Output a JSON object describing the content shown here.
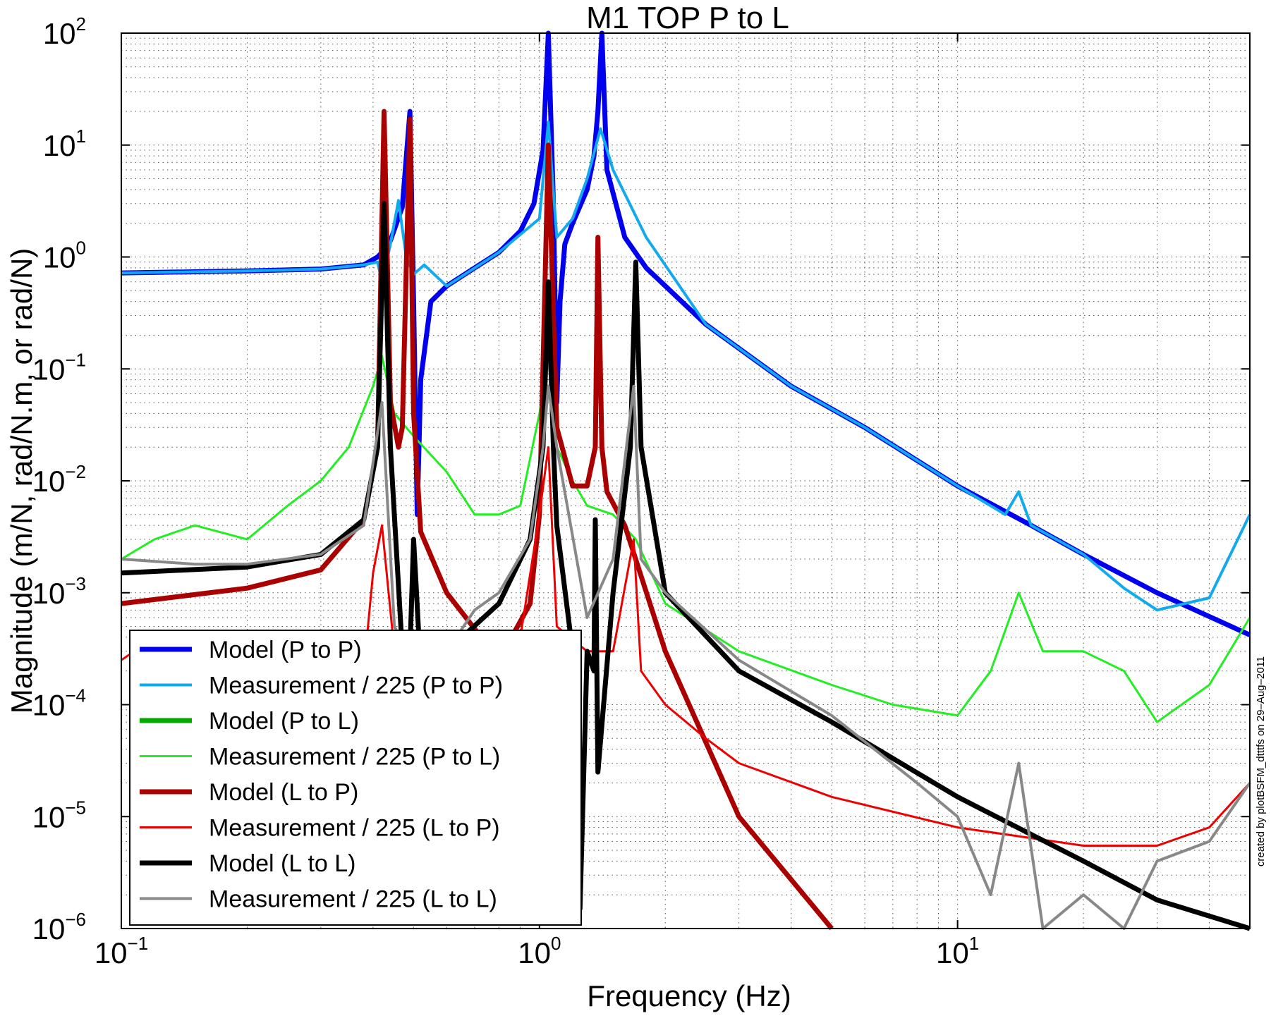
{
  "chart_data": {
    "type": "line",
    "title": "M1 TOP P to L",
    "xlabel": "Frequency (Hz)",
    "ylabel": "Magnitude (m/N, rad/N.m, or rad/N)",
    "xscale": "log",
    "yscale": "log",
    "xlim": [
      0.1,
      50
    ],
    "ylim": [
      1e-06,
      100
    ],
    "grid": true,
    "legend_position": "bottom-left",
    "credit": "created by plotBSFM_dtttfs on 29–Aug–2011",
    "x_ticks": [
      {
        "base": "10",
        "exp": "−1",
        "value": 0.1
      },
      {
        "base": "10",
        "exp": "0",
        "value": 1
      },
      {
        "base": "10",
        "exp": "1",
        "value": 10
      }
    ],
    "y_ticks": [
      {
        "base": "10",
        "exp": "2",
        "value": 100
      },
      {
        "base": "10",
        "exp": "1",
        "value": 10
      },
      {
        "base": "10",
        "exp": "0",
        "value": 1
      },
      {
        "base": "10",
        "exp": "−1",
        "value": 0.1
      },
      {
        "base": "10",
        "exp": "−2",
        "value": 0.01
      },
      {
        "base": "10",
        "exp": "−3",
        "value": 0.001
      },
      {
        "base": "10",
        "exp": "−4",
        "value": 0.0001
      },
      {
        "base": "10",
        "exp": "−5",
        "value": 1e-05
      },
      {
        "base": "10",
        "exp": "−6",
        "value": 1e-06
      }
    ],
    "series": [
      {
        "name": "Model (P to P)",
        "color": "#0000ee",
        "width": 7,
        "x": [
          0.1,
          0.2,
          0.3,
          0.38,
          0.41,
          0.425,
          0.44,
          0.47,
          0.49,
          0.5,
          0.51,
          0.52,
          0.55,
          0.6,
          0.7,
          0.8,
          0.9,
          0.97,
          1.02,
          1.05,
          1.08,
          1.1,
          1.12,
          1.15,
          1.2,
          1.3,
          1.35,
          1.38,
          1.41,
          1.45,
          1.6,
          1.8,
          2.5,
          4,
          6,
          10,
          15,
          20,
          30,
          50
        ],
        "y": [
          0.72,
          0.75,
          0.78,
          0.85,
          1.0,
          1.15,
          1.4,
          2.8,
          20,
          0.4,
          0.005,
          0.08,
          0.4,
          0.55,
          0.8,
          1.1,
          1.7,
          3,
          9,
          150,
          3,
          0.05,
          0.4,
          1.3,
          2,
          4,
          8,
          20,
          150,
          6,
          1.5,
          0.8,
          0.25,
          0.07,
          0.03,
          0.009,
          0.004,
          0.0022,
          0.001,
          0.00042
        ]
      },
      {
        "name": "Measurement / 225 (P to P)",
        "color": "#11aaee",
        "width": 4,
        "x": [
          0.1,
          0.2,
          0.3,
          0.38,
          0.41,
          0.42,
          0.44,
          0.46,
          0.48,
          0.5,
          0.53,
          0.6,
          0.8,
          1.0,
          1.05,
          1.1,
          1.2,
          1.3,
          1.4,
          1.5,
          1.8,
          2.5,
          4,
          6,
          10,
          13,
          14,
          15,
          20,
          25,
          30,
          40,
          50
        ],
        "y": [
          0.72,
          0.75,
          0.78,
          0.85,
          0.9,
          0.6,
          1.3,
          3.2,
          1.0,
          0.7,
          0.85,
          0.55,
          1.1,
          2.2,
          16,
          1.5,
          2.2,
          5,
          14,
          6,
          1.5,
          0.25,
          0.07,
          0.03,
          0.009,
          0.005,
          0.008,
          0.004,
          0.0022,
          0.0011,
          0.0007,
          0.0009,
          0.005
        ]
      },
      {
        "name": "Model (P to L)",
        "color": "#00aa00",
        "width": 7,
        "x": [],
        "y": []
      },
      {
        "name": "Measurement / 225 (P to L)",
        "color": "#22ee22",
        "width": 3,
        "x": [
          0.1,
          0.12,
          0.15,
          0.2,
          0.25,
          0.3,
          0.35,
          0.4,
          0.42,
          0.45,
          0.5,
          0.6,
          0.7,
          0.8,
          0.9,
          1.0,
          1.05,
          1.1,
          1.2,
          1.3,
          1.5,
          1.7,
          2,
          3,
          5,
          7,
          10,
          12,
          14,
          16,
          20,
          25,
          30,
          40,
          50
        ],
        "y": [
          0.002,
          0.003,
          0.004,
          0.003,
          0.006,
          0.01,
          0.02,
          0.07,
          0.13,
          0.04,
          0.025,
          0.012,
          0.005,
          0.005,
          0.006,
          0.04,
          0.12,
          0.02,
          0.01,
          0.006,
          0.005,
          0.003,
          0.0008,
          0.0003,
          0.00015,
          0.0001,
          8e-05,
          0.0002,
          0.001,
          0.0003,
          0.0003,
          0.0002,
          7e-05,
          0.00015,
          0.0006
        ]
      },
      {
        "name": "Model (L to P)",
        "color": "#aa0000",
        "width": 7,
        "x": [
          0.1,
          0.2,
          0.3,
          0.38,
          0.41,
          0.425,
          0.44,
          0.46,
          0.47,
          0.49,
          0.5,
          0.52,
          0.6,
          0.8,
          0.95,
          1.0,
          1.05,
          1.1,
          1.2,
          1.3,
          1.36,
          1.38,
          1.41,
          1.45,
          1.6,
          2,
          3,
          5
        ],
        "y": [
          0.0008,
          0.0011,
          0.0016,
          0.0045,
          0.02,
          20,
          0.05,
          0.02,
          0.03,
          17,
          0.04,
          0.0035,
          0.001,
          0.00025,
          0.0008,
          0.005,
          10,
          0.03,
          0.009,
          0.009,
          0.02,
          1.5,
          0.02,
          0.008,
          0.004,
          0.0003,
          1e-05,
          1e-06
        ]
      },
      {
        "name": "Measurement / 225 (L to P)",
        "color": "#ee0000",
        "width": 3,
        "x": [
          0.1,
          0.12,
          0.15,
          0.2,
          0.3,
          0.38,
          0.4,
          0.42,
          0.45,
          0.5,
          0.6,
          0.8,
          0.9,
          1.0,
          1.05,
          1.1,
          1.3,
          1.5,
          1.68,
          1.75,
          2,
          2.5,
          3,
          5,
          10,
          20,
          30,
          40,
          50
        ],
        "y": [
          0.00025,
          0.0004,
          0.0003,
          0.00035,
          0.0003,
          0.0002,
          0.0015,
          0.004,
          0.0003,
          0.0004,
          0.0003,
          0.0002,
          0.0004,
          0.005,
          0.02,
          0.0005,
          0.0003,
          0.0003,
          0.003,
          0.0002,
          0.0001,
          5e-05,
          3e-05,
          1.5e-05,
          8e-06,
          5.5e-06,
          5.5e-06,
          8e-06,
          2e-05
        ]
      },
      {
        "name": "Model (L to L)",
        "color": "#000000",
        "width": 7,
        "x": [
          0.1,
          0.2,
          0.3,
          0.38,
          0.41,
          0.425,
          0.44,
          0.47,
          0.49,
          0.5,
          0.52,
          0.6,
          0.8,
          0.95,
          1.02,
          1.05,
          1.08,
          1.1,
          1.2,
          1.25,
          1.3,
          1.35,
          1.36,
          1.38,
          1.5,
          1.65,
          1.7,
          1.75,
          2,
          3,
          5,
          10,
          20,
          30,
          50
        ],
        "y": [
          0.0015,
          0.0017,
          0.0022,
          0.0045,
          0.02,
          3,
          0.02,
          0.0003,
          0.0003,
          0.003,
          0.0002,
          0.0003,
          0.0008,
          0.003,
          0.02,
          0.6,
          0.02,
          0.004,
          0.0003,
          1.5e-06,
          0.0003,
          0.0002,
          0.0045,
          2.5e-05,
          0.001,
          0.02,
          0.9,
          0.02,
          0.001,
          0.0002,
          7e-05,
          1.5e-05,
          4e-06,
          1.8e-06,
          6e-07
        ]
      },
      {
        "name": "Measurement / 225 (L to L)",
        "color": "#888888",
        "width": 4,
        "x": [
          0.1,
          0.15,
          0.2,
          0.3,
          0.38,
          0.42,
          0.45,
          0.48,
          0.5,
          0.55,
          0.6,
          0.7,
          0.8,
          0.95,
          1.02,
          1.05,
          1.1,
          1.3,
          1.5,
          1.68,
          1.75,
          2,
          3,
          5,
          8,
          10,
          12,
          14,
          16,
          20,
          25,
          30,
          40,
          50
        ],
        "y": [
          0.002,
          0.0018,
          0.0018,
          0.0022,
          0.004,
          0.05,
          0.0005,
          0.0003,
          0.0003,
          0.0003,
          0.0003,
          0.0007,
          0.001,
          0.003,
          0.02,
          0.07,
          0.02,
          0.0006,
          0.002,
          0.07,
          0.002,
          0.001,
          0.00025,
          8e-05,
          2e-05,
          1e-05,
          2e-06,
          3e-05,
          1e-06,
          2e-06,
          1e-06,
          4e-06,
          6e-06,
          2e-05
        ]
      }
    ]
  }
}
